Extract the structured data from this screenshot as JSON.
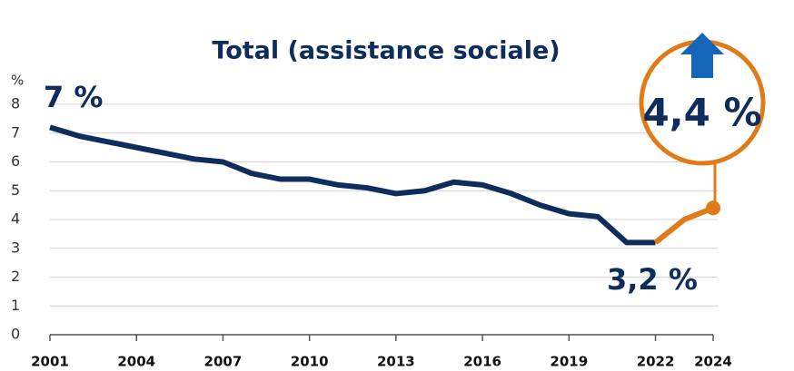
{
  "chart_data": {
    "type": "line",
    "title": "Total (assistance sociale)",
    "y_unit": "%",
    "x": [
      2001,
      2002,
      2003,
      2004,
      2005,
      2006,
      2007,
      2008,
      2009,
      2010,
      2011,
      2012,
      2013,
      2014,
      2015,
      2016,
      2017,
      2018,
      2019,
      2020,
      2021,
      2022,
      2023,
      2024
    ],
    "series": [
      {
        "color": "#0f2d5c",
        "values": [
          7.2,
          6.9,
          6.7,
          6.5,
          6.3,
          6.1,
          6.0,
          5.6,
          5.4,
          5.4,
          5.2,
          5.1,
          4.9,
          5.0,
          5.3,
          5.2,
          4.9,
          4.5,
          4.2,
          4.1,
          3.2,
          3.2,
          null,
          null
        ]
      },
      {
        "color": "#e07b1a",
        "values": [
          null,
          null,
          null,
          null,
          null,
          null,
          null,
          null,
          null,
          null,
          null,
          null,
          null,
          null,
          null,
          null,
          null,
          null,
          null,
          null,
          null,
          3.2,
          4.0,
          4.4
        ]
      }
    ],
    "annotations": [
      "7 %",
      "3,2 %",
      "4,4 %"
    ],
    "xlim": [
      2001,
      2024
    ],
    "xticks": [
      2001,
      2004,
      2007,
      2010,
      2013,
      2016,
      2019,
      2022,
      2024
    ],
    "ylim": [
      0,
      8
    ],
    "yticks": [
      0,
      1,
      2,
      3,
      4,
      5,
      6,
      7,
      8
    ],
    "grid": true
  }
}
